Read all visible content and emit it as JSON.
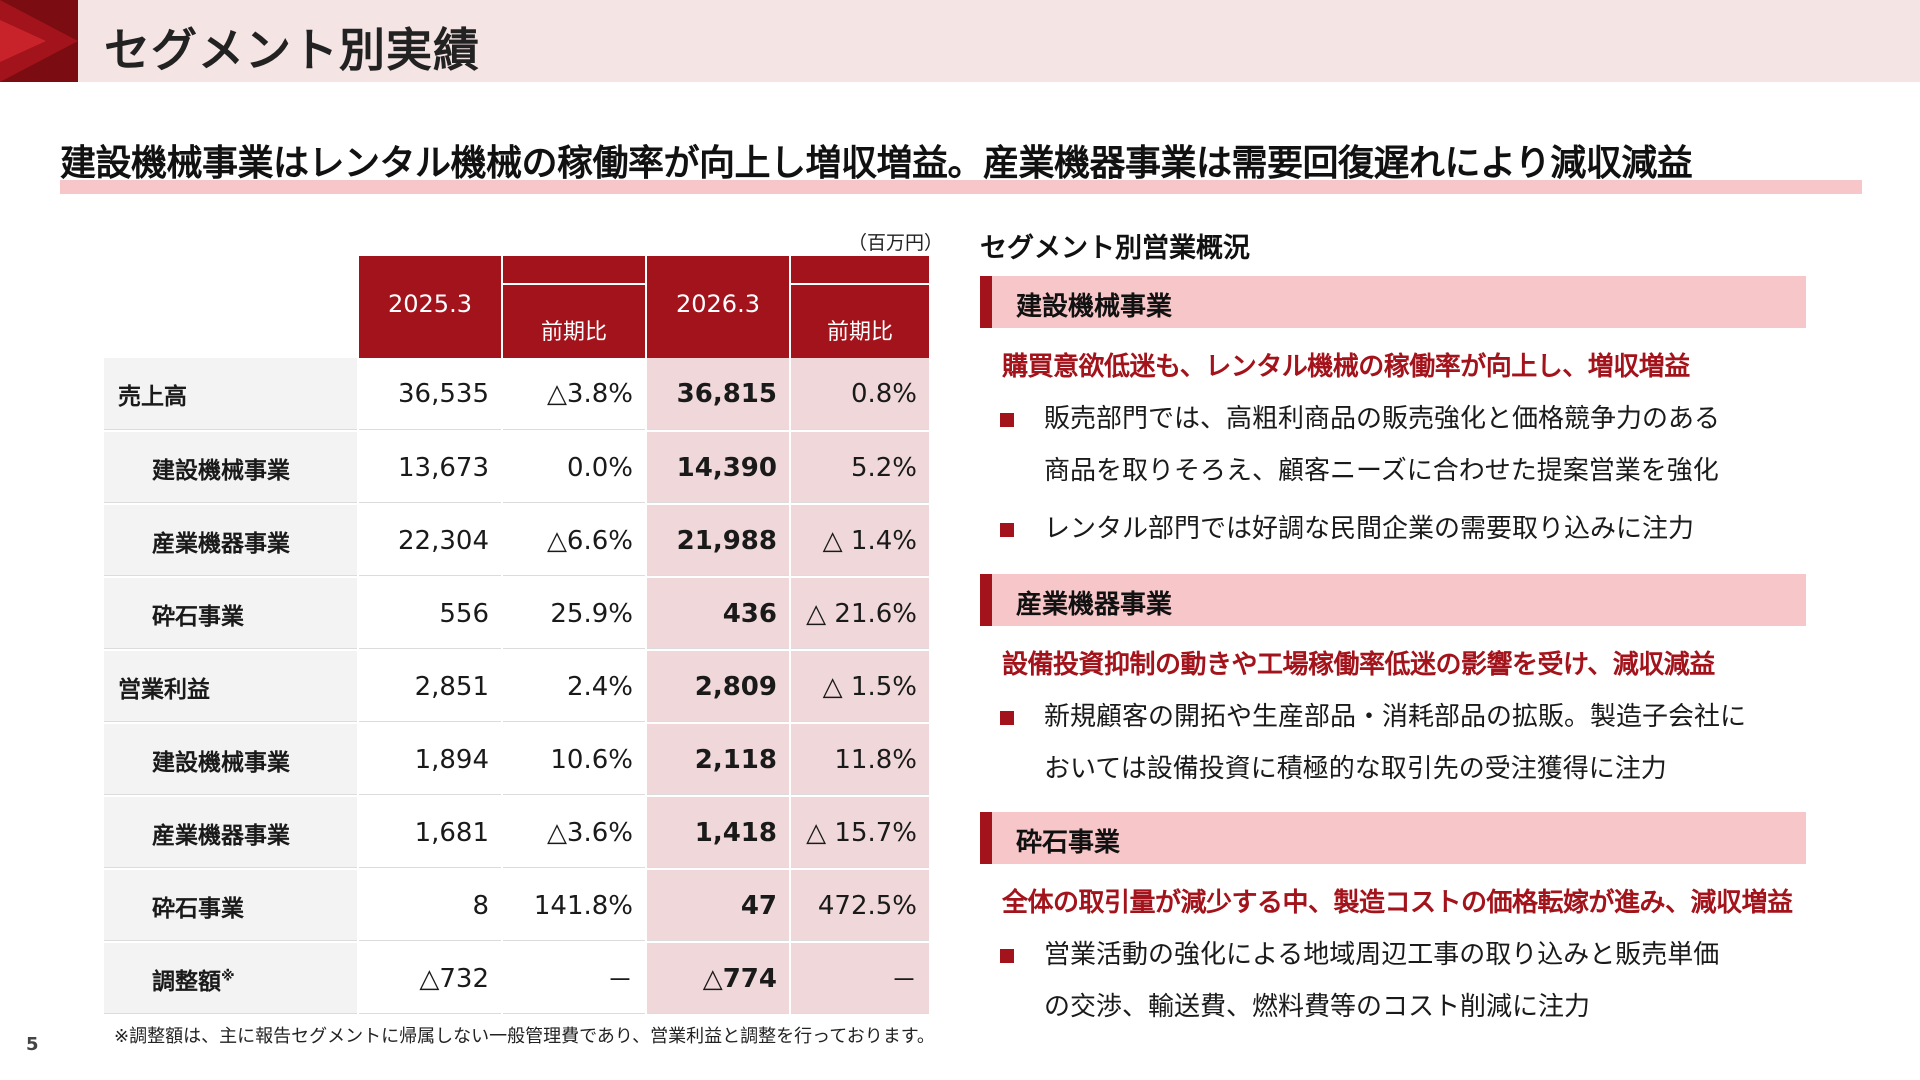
{
  "page_title": "セグメント別実績",
  "headline": "建設機械事業はレンタル機械の稼働率が向上し増収増益。産業機器事業は需要回復遅れにより減収減益",
  "table": {
    "unit": "（百万円）",
    "headers": {
      "year1": "2025.3",
      "cmp1": "前期比",
      "year2": "2026.3",
      "cmp2": "前期比"
    },
    "rows": [
      {
        "label": "売上高",
        "v1": "36,535",
        "c1": "△3.8%",
        "v2": "36,815",
        "c2": "0.8%"
      },
      {
        "label": "建設機械事業",
        "v1": "13,673",
        "c1": "0.0%",
        "v2": "14,390",
        "c2": "5.2%"
      },
      {
        "label": "産業機器事業",
        "v1": "22,304",
        "c1": "△6.6%",
        "v2": "21,988",
        "c2": "△ 1.4%"
      },
      {
        "label": "砕石事業",
        "v1": "556",
        "c1": "25.9%",
        "v2": "436",
        "c2": "△ 21.6%"
      },
      {
        "label": "営業利益",
        "v1": "2,851",
        "c1": "2.4%",
        "v2": "2,809",
        "c2": "△ 1.5%"
      },
      {
        "label": "建設機械事業",
        "v1": "1,894",
        "c1": "10.6%",
        "v2": "2,118",
        "c2": "11.8%"
      },
      {
        "label": "産業機器事業",
        "v1": "1,681",
        "c1": "△3.6%",
        "v2": "1,418",
        "c2": "△ 15.7%"
      },
      {
        "label": "砕石事業",
        "v1": "8",
        "c1": "141.8%",
        "v2": "47",
        "c2": "472.5%"
      },
      {
        "label": "調整額",
        "label_sup": "※",
        "v1": "△732",
        "c1": "－",
        "v2": "△774",
        "c2": "－"
      }
    ]
  },
  "footnote": "※調整額は、主に報告セグメントに帰属しない一般管理費であり、営業利益と調整を行っております。",
  "page_number": "5",
  "overview": {
    "title": "セグメント別営業概況",
    "segments": [
      {
        "name": "建設機械事業",
        "lead": "購買意欲低迷も、レンタル機械の稼働率が向上し、増収増益",
        "bullets": [
          {
            "line1": "販売部門では、高粗利商品の販売強化と価格競争力のある",
            "line2": "商品を取りそろえ、顧客ニーズに合わせた提案営業を強化"
          },
          {
            "line1": "レンタル部門では好調な民間企業の需要取り込みに注力",
            "line2": ""
          }
        ]
      },
      {
        "name": "産業機器事業",
        "lead": "設備投資抑制の動きや工場稼働率低迷の影響を受け、減収減益",
        "bullets": [
          {
            "line1": "新規顧客の開拓や生産部品・消耗部品の拡販。製造子会社に",
            "line2": "おいては設備投資に積極的な取引先の受注獲得に注力"
          }
        ]
      },
      {
        "name": "砕石事業",
        "lead": "全体の取引量が減少する中、製造コストの価格転嫁が進み、減収増益",
        "bullets": [
          {
            "line1": "営業活動の強化による地域周辺工事の取り込みと販売単価",
            "line2": "の交渉、輸送費、燃料費等のコスト削減に注力"
          }
        ]
      }
    ]
  },
  "colors": {
    "accent": "#a3131b",
    "pink": "#f7c6c8",
    "header_band": "#f5e4e4",
    "highlight_col": "#f0d8da"
  }
}
